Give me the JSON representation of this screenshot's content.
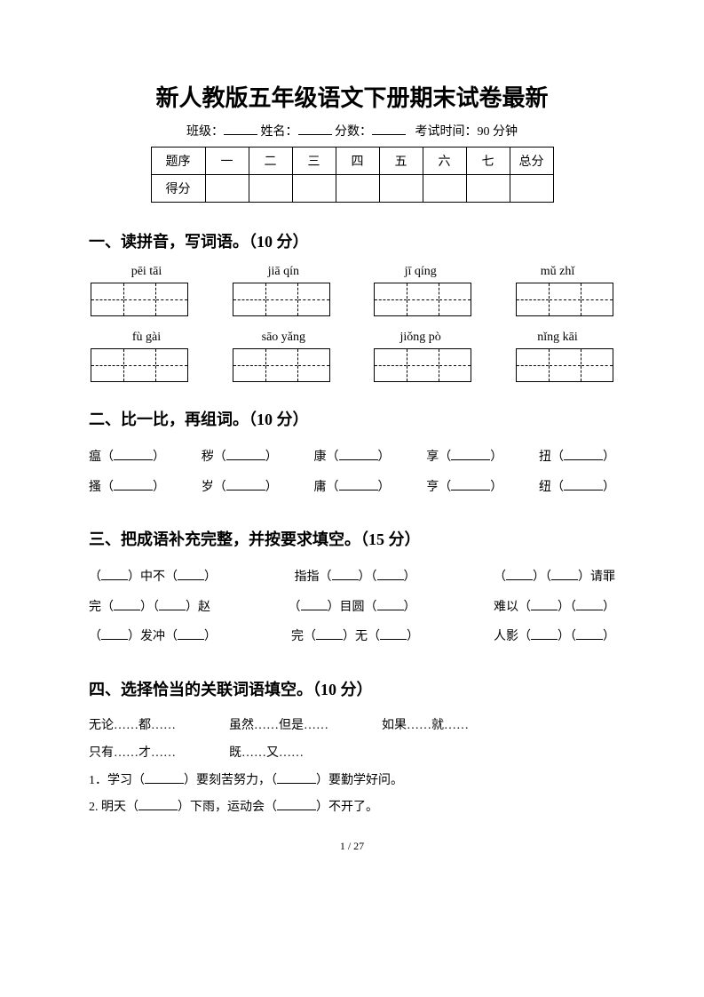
{
  "title": "新人教版五年级语文下册期末试卷最新",
  "meta": {
    "class_label": "班级：",
    "name_label": "姓名：",
    "score_label": "分数：",
    "time_label": "考试时间：90 分钟"
  },
  "score_table": {
    "row1": [
      "题序",
      "一",
      "二",
      "三",
      "四",
      "五",
      "六",
      "七",
      "总分"
    ],
    "row2_label": "得分"
  },
  "sections": {
    "s1": {
      "heading": "一、读拼音，写词语。（10 分）",
      "row1_pinyin": [
        "pēi tāi",
        "jiā qín",
        "jī qíng",
        "mǔ zhǐ"
      ],
      "row2_pinyin": [
        "fù gài",
        "sāo yǎng",
        "jiǒng pò",
        "nǐng kāi"
      ],
      "box_cells": [
        3,
        3,
        3,
        3
      ]
    },
    "s2": {
      "heading": "二、比一比，再组词。（10 分）",
      "row1_chars": [
        "瘟",
        "秽",
        "康",
        "享",
        "扭"
      ],
      "row2_chars": [
        "搔",
        "岁",
        "庸",
        "亨",
        "纽"
      ]
    },
    "s3": {
      "heading": "三、把成语补充完整，并按要求填空。（15 分）",
      "items": [
        [
          "（",
          "）中不（",
          "）"
        ],
        [
          "指指（",
          "）（",
          "）"
        ],
        [
          "（",
          "）（",
          "）请罪"
        ],
        [
          "完（",
          "）（",
          "）赵"
        ],
        [
          "（",
          "）目圆（",
          "）"
        ],
        [
          "难以（",
          "）（",
          "）"
        ],
        [
          "（",
          "）发冲（",
          "）"
        ],
        [
          "完（",
          "）无（",
          "）"
        ],
        [
          "人影（",
          "）（",
          "）"
        ]
      ]
    },
    "s4": {
      "heading": "四、选择恰当的关联词语填空。（10 分）",
      "conjunctions_row1": [
        "无论……都……",
        "虽然……但是……",
        "如果……就……"
      ],
      "conjunctions_row2": [
        "只有……才……",
        "既……又……"
      ],
      "q1_prefix": "1．学习（",
      "q1_mid": "）要刻苦努力，（",
      "q1_suffix": "）要勤学好问。",
      "q2_prefix": "2. 明天（",
      "q2_mid": "）下雨，运动会（",
      "q2_suffix": "）不开了。"
    }
  },
  "footer": "1 / 27",
  "colors": {
    "text": "#000000",
    "background": "#ffffff"
  }
}
